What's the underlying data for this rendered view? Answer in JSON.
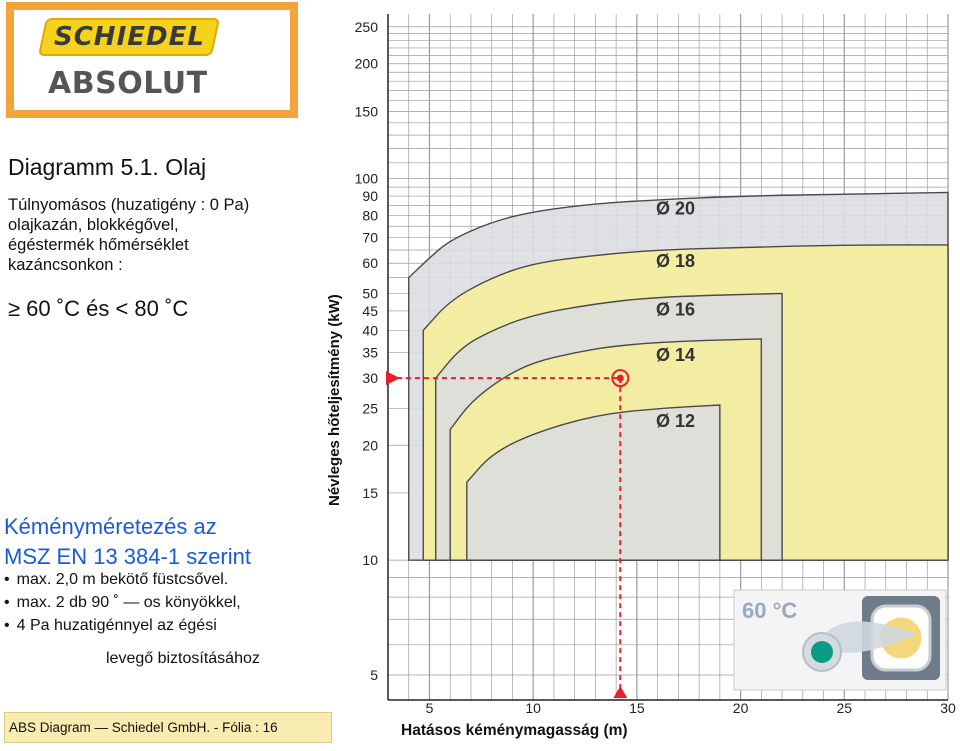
{
  "logo": {
    "brand": "SCHIEDEL",
    "product": "ABSOLUT"
  },
  "heading": "Diagramm 5.1. Olaj",
  "description": [
    "Túlnyomásos (huzatigény : 0 Pa)",
    "olajkazán, blokkégővel,",
    "égéstermék hőmérséklet",
    "kazáncsonkon :"
  ],
  "temperature_condition": "≥ 60 ˚C és < 80 ˚C",
  "sizing": {
    "line1": "Kéményméretezés az",
    "line2": "MSZ EN 13 384-1 szerint"
  },
  "bullets": [
    "max. 2,0 m bekötő füstcsővel.",
    "max. 2 db 90 ˚ — os könyökkel,",
    "4 Pa huzatigénnyel az égési"
  ],
  "bullet_continuation": "levegő biztosításához",
  "footer": "ABS Diagram — Schiedel GmbH. - Fólia : 16",
  "badge": {
    "temperature": "60 °C"
  },
  "colors": {
    "band_gray": "#dcdde0",
    "band_yellow": "#f6ef9c",
    "marker": "#e8202a",
    "logo_frame": "#f2a33a",
    "sizing_text": "#1a5bd6"
  },
  "chart_data": {
    "type": "area",
    "xlabel": "Hatásos kéménymagasság (m)",
    "ylabel": "Névleges hőteljesítmény (kW)",
    "x_ticks": [
      5,
      10,
      15,
      20,
      25,
      30
    ],
    "xlim": [
      3,
      30
    ],
    "y_scale": "log",
    "y_ticks": [
      5,
      10,
      15,
      20,
      25,
      30,
      35,
      40,
      45,
      50,
      60,
      70,
      80,
      90,
      100,
      150,
      200,
      250
    ],
    "grid": true,
    "series": [
      {
        "name": "Ø 20",
        "fill": "gray",
        "x_start": 4.0,
        "left_bottom": 16,
        "top": [
          [
            4.0,
            55
          ],
          [
            5,
            62
          ],
          [
            6,
            69
          ],
          [
            8,
            77
          ],
          [
            10,
            82
          ],
          [
            13,
            86
          ],
          [
            16,
            88
          ],
          [
            20,
            90
          ],
          [
            25,
            91
          ],
          [
            30,
            92
          ]
        ]
      },
      {
        "name": "Ø 18",
        "fill": "yellow",
        "x_start": 4.7,
        "left_bottom": 16,
        "top": [
          [
            4.7,
            40
          ],
          [
            6,
            48
          ],
          [
            8,
            55
          ],
          [
            10,
            60
          ],
          [
            13,
            63
          ],
          [
            16,
            65
          ],
          [
            20,
            66
          ],
          [
            25,
            67
          ],
          [
            30,
            67
          ]
        ]
      },
      {
        "name": "Ø 16",
        "fill": "gray",
        "x_start": 5.3,
        "left_bottom": 17,
        "end_x": 22.0,
        "top": [
          [
            5.3,
            30
          ],
          [
            6.5,
            36
          ],
          [
            8,
            40
          ],
          [
            10,
            44
          ],
          [
            13,
            47
          ],
          [
            16,
            49
          ],
          [
            22,
            50
          ]
        ]
      },
      {
        "name": "Ø 14",
        "fill": "yellow",
        "x_start": 6.0,
        "left_bottom": 17,
        "end_x": 21.0,
        "top": [
          [
            6.0,
            22
          ],
          [
            7,
            26
          ],
          [
            8.5,
            30
          ],
          [
            10,
            33
          ],
          [
            12,
            35
          ],
          [
            14,
            36.5
          ],
          [
            17,
            37.5
          ],
          [
            21,
            38
          ]
        ]
      },
      {
        "name": "Ø 12",
        "fill": "gray",
        "x_start": 6.8,
        "left_bottom": 18,
        "end_x": 19.0,
        "top": [
          [
            6.8,
            16
          ],
          [
            8,
            19
          ],
          [
            10,
            21.5
          ],
          [
            13,
            24
          ],
          [
            16,
            25
          ],
          [
            19,
            25.5
          ]
        ]
      }
    ],
    "band_bottom": 10,
    "example": {
      "x": 14.2,
      "y": 30
    }
  }
}
